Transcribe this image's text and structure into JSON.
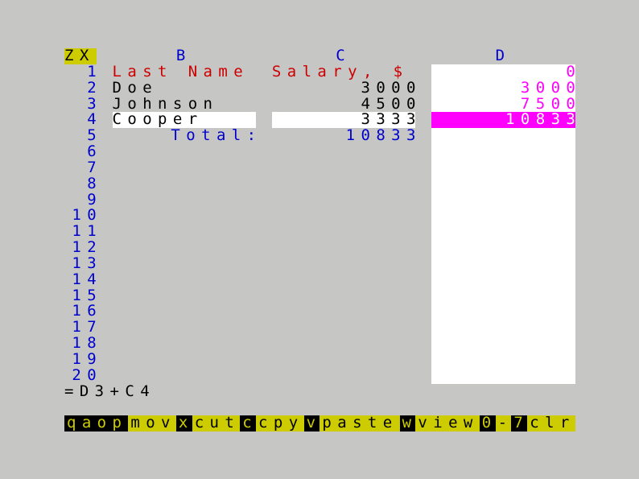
{
  "corner_label": "ZX",
  "column_headers": [
    "B",
    "C",
    "D"
  ],
  "row_numbers": [
    "1",
    "2",
    "3",
    "4",
    "5",
    "6",
    "7",
    "8",
    "9",
    "10",
    "11",
    "12",
    "13",
    "14",
    "15",
    "16",
    "17",
    "18",
    "19",
    "20"
  ],
  "rows": [
    {
      "B": "Last Name",
      "C": "Salary, $",
      "D": "0",
      "style": "header"
    },
    {
      "B": "Doe",
      "C": "3000",
      "D": "3000"
    },
    {
      "B": "Johnson",
      "C": "4500",
      "D": "7500"
    },
    {
      "B": "Cooper",
      "C": "3333",
      "D": "10833",
      "selected": true
    },
    {
      "B": "Total:",
      "C": "10833",
      "D": "",
      "style": "total"
    }
  ],
  "formula_bar": "=D3+C4",
  "command_bar": [
    {
      "text": "qaop",
      "key": true
    },
    {
      "text": "mov",
      "key": false
    },
    {
      "text": "x",
      "key": true
    },
    {
      "text": "cut",
      "key": false
    },
    {
      "text": "c",
      "key": true
    },
    {
      "text": "cpy",
      "key": false
    },
    {
      "text": "v",
      "key": true
    },
    {
      "text": "paste",
      "key": false
    },
    {
      "text": "w",
      "key": true
    },
    {
      "text": "view",
      "key": false
    },
    {
      "text": "0",
      "key": true
    },
    {
      "text": "-",
      "key": false
    },
    {
      "text": "7",
      "key": true
    },
    {
      "text": "clr",
      "key": false
    }
  ],
  "colors": {
    "background": "#c6c7c5",
    "blue": "#0000cc",
    "red": "#cc0000",
    "black": "#000000",
    "magenta": "#ff00ff",
    "yellow": "#cccc00",
    "white": "#ffffff"
  }
}
